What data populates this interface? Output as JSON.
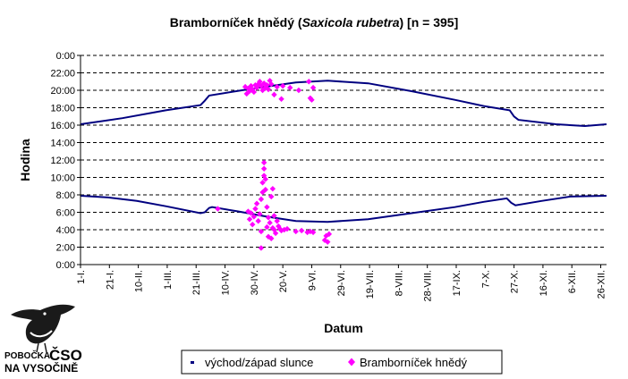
{
  "chart_data": {
    "type": "scatter",
    "title_prefix": "Bramborníček hnědý (",
    "title_italic": "Saxicola rubetra",
    "title_suffix": ") [n = 395]",
    "xlabel": "Datum",
    "ylabel": "Hodina",
    "x_unit": "day_of_year",
    "xlim": [
      1,
      365
    ],
    "ylim": [
      0,
      24
    ],
    "y_tick_values": [
      0,
      2,
      4,
      6,
      8,
      10,
      12,
      14,
      16,
      18,
      20,
      22,
      24
    ],
    "y_tick_labels": [
      "0:00",
      "2:00",
      "4:00",
      "6:00",
      "8:00",
      "10:00",
      "12:00",
      "14:00",
      "16:00",
      "18:00",
      "20:00",
      "22:00",
      "0:00"
    ],
    "x_tick_values": [
      1,
      21,
      41,
      61,
      81,
      101,
      121,
      141,
      161,
      181,
      201,
      221,
      241,
      261,
      281,
      301,
      321,
      341,
      361
    ],
    "x_tick_labels": [
      "1-I.",
      "21-I.",
      "10-II.",
      "1-III.",
      "21-III.",
      "10-IV.",
      "30-IV.",
      "20-V.",
      "9-VI.",
      "29-VI.",
      "19-VII.",
      "8-VIII.",
      "28-VIII.",
      "17-IX.",
      "7-X.",
      "27-X.",
      "16-XI.",
      "6-XII.",
      "26-XII."
    ],
    "grid": "horizontal-dashed",
    "legend_position": "bottom",
    "colors": {
      "sun": "#000080",
      "bird": "#ff00ff"
    },
    "series": [
      {
        "name": "východ/západ slunce",
        "kind": "line",
        "sunset": [
          [
            1,
            16.1
          ],
          [
            30,
            16.8
          ],
          [
            60,
            17.7
          ],
          [
            84,
            18.3
          ],
          [
            87,
            18.8
          ],
          [
            90,
            19.4
          ],
          [
            120,
            20.2
          ],
          [
            150,
            20.9
          ],
          [
            172,
            21.1
          ],
          [
            200,
            20.8
          ],
          [
            230,
            19.9
          ],
          [
            260,
            18.9
          ],
          [
            280,
            18.2
          ],
          [
            298,
            17.7
          ],
          [
            301,
            17.0
          ],
          [
            304,
            16.6
          ],
          [
            330,
            16.1
          ],
          [
            350,
            15.9
          ],
          [
            365,
            16.1
          ]
        ],
        "sunrise": [
          [
            1,
            7.9
          ],
          [
            20,
            7.7
          ],
          [
            40,
            7.3
          ],
          [
            60,
            6.7
          ],
          [
            84,
            5.9
          ],
          [
            87,
            6.0
          ],
          [
            90,
            6.5
          ],
          [
            92,
            6.6
          ],
          [
            110,
            6.1
          ],
          [
            130,
            5.5
          ],
          [
            150,
            5.0
          ],
          [
            172,
            4.9
          ],
          [
            200,
            5.2
          ],
          [
            230,
            5.9
          ],
          [
            260,
            6.6
          ],
          [
            280,
            7.2
          ],
          [
            296,
            7.6
          ],
          [
            299,
            7.1
          ],
          [
            302,
            6.8
          ],
          [
            320,
            7.3
          ],
          [
            340,
            7.8
          ],
          [
            365,
            7.9
          ]
        ]
      },
      {
        "name": "Bramborníček hnědý",
        "kind": "scatter",
        "points": [
          [
            96,
            6.4
          ],
          [
            115,
            20.4
          ],
          [
            116,
            19.6
          ],
          [
            117,
            20.2
          ],
          [
            118,
            19.9
          ],
          [
            119,
            20.5
          ],
          [
            120,
            20.1
          ],
          [
            121,
            19.8
          ],
          [
            122,
            20.6
          ],
          [
            123,
            20.3
          ],
          [
            124,
            20.7
          ],
          [
            125,
            21.0
          ],
          [
            126,
            20.5
          ],
          [
            127,
            20.0
          ],
          [
            128,
            20.8
          ],
          [
            129,
            20.3
          ],
          [
            130,
            20.6
          ],
          [
            131,
            20.1
          ],
          [
            132,
            21.1
          ],
          [
            133,
            20.7
          ],
          [
            135,
            19.5
          ],
          [
            137,
            20.4
          ],
          [
            140,
            19.0
          ],
          [
            141,
            20.5
          ],
          [
            146,
            20.3
          ],
          [
            152,
            20.0
          ],
          [
            159,
            21.0
          ],
          [
            160,
            19.1
          ],
          [
            161,
            18.9
          ],
          [
            162,
            20.3
          ],
          [
            117,
            6.1
          ],
          [
            118,
            5.2
          ],
          [
            119,
            5.9
          ],
          [
            120,
            4.6
          ],
          [
            121,
            5.5
          ],
          [
            122,
            6.4
          ],
          [
            123,
            7.0
          ],
          [
            124,
            5.0
          ],
          [
            125,
            5.8
          ],
          [
            126,
            1.9
          ],
          [
            126,
            3.8
          ],
          [
            126,
            7.5
          ],
          [
            127,
            8.3
          ],
          [
            127,
            9.4
          ],
          [
            128,
            10.2
          ],
          [
            128,
            11.0
          ],
          [
            128,
            11.7
          ],
          [
            129,
            8.6
          ],
          [
            129,
            9.8
          ],
          [
            130,
            4.3
          ],
          [
            130,
            6.6
          ],
          [
            131,
            5.4
          ],
          [
            131,
            3.2
          ],
          [
            132,
            4.8
          ],
          [
            133,
            3.0
          ],
          [
            133,
            7.8
          ],
          [
            134,
            4.2
          ],
          [
            134,
            8.7
          ],
          [
            135,
            5.6
          ],
          [
            135,
            4.0
          ],
          [
            136,
            3.6
          ],
          [
            137,
            5.0
          ],
          [
            138,
            4.4
          ],
          [
            139,
            4.1
          ],
          [
            140,
            3.9
          ],
          [
            142,
            4.0
          ],
          [
            144,
            4.1
          ],
          [
            150,
            3.8
          ],
          [
            154,
            3.9
          ],
          [
            158,
            3.7
          ],
          [
            160,
            3.8
          ],
          [
            162,
            3.7
          ],
          [
            170,
            2.8
          ],
          [
            171,
            3.3
          ],
          [
            172,
            2.6
          ],
          [
            173,
            3.5
          ]
        ]
      }
    ]
  },
  "logo": {
    "line1": "POBOČKA",
    "big": "ČSO",
    "line2": "NA VYSOČINĚ"
  }
}
